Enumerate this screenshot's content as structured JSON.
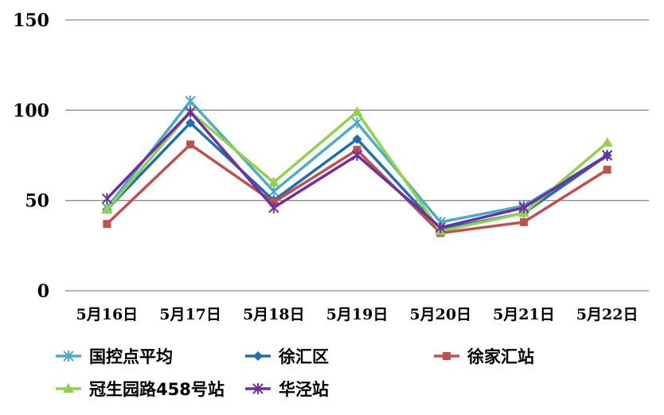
{
  "chart_data": {
    "type": "line",
    "categories": [
      "5月16日",
      "5月17日",
      "5月18日",
      "5月19日",
      "5月20日",
      "5月21日",
      "5月22日"
    ],
    "ylim": [
      0,
      150
    ],
    "yticks": [
      0,
      50,
      100,
      150
    ],
    "grid": true,
    "legend_position": "bottom",
    "series": [
      {
        "name": "国控点平均",
        "color": "#4bacc6",
        "marker": "asterisk",
        "values": [
          46,
          105,
          55,
          93,
          38,
          47,
          75
        ]
      },
      {
        "name": "徐汇区",
        "color": "#1f6eb4",
        "marker": "diamond",
        "values": [
          45,
          93,
          50,
          84,
          34,
          43,
          75
        ]
      },
      {
        "name": "徐家汇站",
        "color": "#c0504d",
        "marker": "square",
        "values": [
          37,
          81,
          49,
          78,
          32,
          38,
          67
        ]
      },
      {
        "name": "冠生园路458号站",
        "color": "#92d050",
        "marker": "triangle",
        "values": [
          45,
          99,
          60,
          99,
          33,
          43,
          82
        ]
      },
      {
        "name": "华泾站",
        "color": "#7030a0",
        "marker": "asterisk",
        "values": [
          51,
          99,
          46,
          75,
          35,
          46,
          75
        ]
      }
    ]
  }
}
